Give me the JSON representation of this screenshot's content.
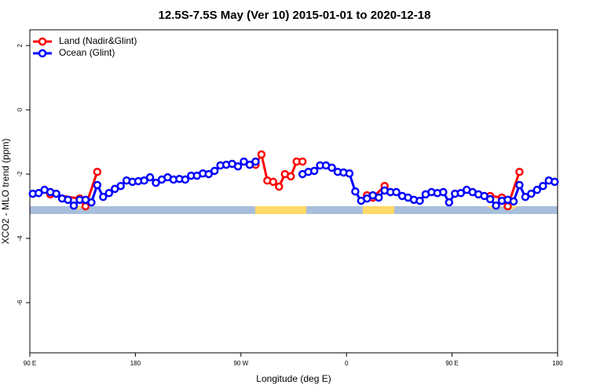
{
  "chart_data": {
    "type": "line",
    "title": "12.5S-7.5S May (Ver 10)   2015-01-01 to 2020-12-18",
    "x_label": "Longitude (deg E)",
    "y_label": "XCO2 - MLO trend (ppm)",
    "xlim": [
      90,
      540
    ],
    "ylim": [
      -7.56,
      2.49
    ],
    "xticks": [
      {
        "value": 90,
        "label": "90 E"
      },
      180,
      {
        "value": 270,
        "label": "90 W"
      },
      {
        "value": 360,
        "label": "0"
      },
      {
        "value": 450,
        "label": "90 E"
      },
      {
        "value": 540,
        "label": "180"
      }
    ],
    "yticks": [
      2,
      0,
      -2,
      -4,
      -6
    ],
    "legend": "top-left",
    "series": [
      {
        "name": "Land (Nadir&Glint)",
        "color": "#ff0000",
        "x": [
          107.5,
          132.5,
          137.5,
          147.5,
          null,
          282.5,
          287.5,
          292.5,
          297.5,
          302.5,
          307.5,
          312.5,
          317.5,
          322.5,
          null,
          377.5,
          382.5,
          392.5,
          397.5,
          null,
          482.5,
          492.5,
          497.5,
          507.5
        ],
        "values": [
          -2.63,
          -2.76,
          -3.0,
          -1.93,
          null,
          -1.71,
          -1.39,
          -2.2,
          -2.24,
          -2.39,
          -2.0,
          -2.07,
          -1.61,
          -1.61,
          null,
          -2.66,
          -2.73,
          -2.37,
          -2.56,
          null,
          -2.68,
          -2.73,
          -3.0,
          -1.93
        ]
      },
      {
        "name": "Ocean (Glint)",
        "color": "#0000ff",
        "x": [
          92.5,
          97.5,
          102.5,
          107.5,
          112.5,
          117.5,
          122.5,
          127.5,
          132.5,
          137.5,
          142.5,
          147.5,
          152.5,
          157.5,
          162.5,
          167.5,
          172.5,
          177.5,
          182.5,
          187.5,
          192.5,
          197.5,
          202.5,
          207.5,
          212.5,
          217.5,
          222.5,
          227.5,
          232.5,
          237.5,
          242.5,
          247.5,
          252.5,
          257.5,
          262.5,
          267.5,
          272.5,
          277.5,
          282.5,
          null,
          322.5,
          327.5,
          332.5,
          337.5,
          342.5,
          347.5,
          352.5,
          357.5,
          362.5,
          367.5,
          372.5,
          377.5,
          382.5,
          387.5,
          392.5,
          397.5,
          402.5,
          407.5,
          412.5,
          417.5,
          422.5,
          427.5,
          432.5,
          437.5,
          442.5,
          447.5,
          452.5,
          457.5,
          462.5,
          467.5,
          472.5,
          477.5,
          482.5,
          487.5,
          492.5,
          497.5,
          502.5,
          507.5,
          512.5,
          517.5,
          522.5,
          527.5,
          532.5,
          537.5
        ],
        "values": [
          -2.61,
          -2.59,
          -2.49,
          -2.56,
          -2.61,
          -2.76,
          -2.8,
          -2.98,
          -2.8,
          -2.8,
          -2.88,
          -2.34,
          -2.71,
          -2.59,
          -2.46,
          -2.37,
          -2.2,
          -2.24,
          -2.22,
          -2.2,
          -2.1,
          -2.27,
          -2.17,
          -2.1,
          -2.17,
          -2.15,
          -2.17,
          -2.05,
          -2.05,
          -1.98,
          -2.0,
          -1.9,
          -1.73,
          -1.71,
          -1.68,
          -1.76,
          -1.61,
          -1.71,
          -1.61,
          null,
          -2.0,
          -1.93,
          -1.9,
          -1.73,
          -1.73,
          -1.8,
          -1.93,
          -1.95,
          -1.98,
          -2.54,
          -2.83,
          -2.76,
          -2.66,
          -2.73,
          -2.51,
          -2.56,
          -2.56,
          -2.68,
          -2.73,
          -2.8,
          -2.83,
          -2.63,
          -2.56,
          -2.59,
          -2.56,
          -2.88,
          -2.61,
          -2.59,
          -2.49,
          -2.56,
          -2.63,
          -2.68,
          -2.78,
          -2.98,
          -2.83,
          -2.8,
          -2.85,
          -2.34,
          -2.71,
          -2.61,
          -2.49,
          -2.37,
          -2.2,
          -2.24
        ]
      }
    ]
  }
}
